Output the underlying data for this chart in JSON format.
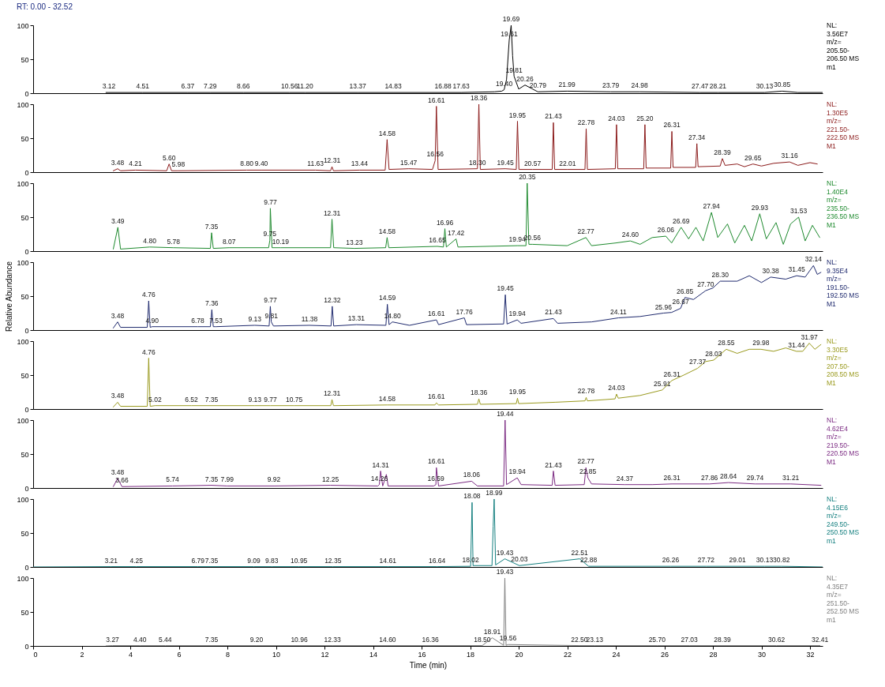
{
  "chart_data": [
    {
      "type": "line",
      "title": "RT: 0.00 - 32.52",
      "xlim": [
        0,
        32.52
      ],
      "xticks": [
        0,
        2,
        4,
        6,
        8,
        10,
        12,
        14,
        16,
        18,
        20,
        22,
        24,
        26,
        28,
        30,
        32
      ],
      "ylim": [
        0,
        100
      ],
      "yticks": [
        0,
        50,
        100
      ],
      "tick_labels": "y",
      "series": [
        {
          "color": "#000000",
          "x": [
            3.0,
            3.12,
            4.51,
            6.37,
            7.29,
            8.66,
            10.56,
            11.2,
            13.37,
            14.83,
            16.88,
            17.63,
            19.0,
            19.3,
            19.4,
            19.5,
            19.61,
            19.69,
            19.75,
            19.81,
            20.0,
            20.26,
            20.79,
            21.99,
            23.79,
            24.98,
            27.47,
            28.21,
            30.13,
            30.85,
            31.5,
            32.52
          ],
          "values": [
            1,
            1,
            1,
            1,
            1,
            1,
            1,
            1,
            1,
            1,
            1,
            1,
            2,
            3,
            5,
            20,
            78,
            100,
            55,
            25,
            6,
            12,
            2,
            3,
            2,
            2,
            1,
            1,
            1,
            3,
            1,
            1
          ]
        }
      ],
      "annotations": [
        "NL:\n3.56E7\nm/z=\n205.50-\n206.50 MS\nm1",
        {
          "text": "3.12",
          "x": 3.12,
          "y": 1
        },
        {
          "text": "4.51",
          "x": 4.51,
          "y": 1
        },
        {
          "text": "6.37",
          "x": 6.37,
          "y": 1
        },
        {
          "text": "7.29",
          "x": 7.29,
          "y": 1
        },
        {
          "text": "8.66",
          "x": 8.66,
          "y": 1
        },
        {
          "text": "10.56",
          "x": 10.56,
          "y": 1
        },
        {
          "text": "11.20",
          "x": 11.2,
          "y": 1
        },
        {
          "text": "13.37",
          "x": 13.37,
          "y": 1
        },
        {
          "text": "14.83",
          "x": 14.83,
          "y": 1
        },
        {
          "text": "16.88",
          "x": 16.88,
          "y": 1
        },
        {
          "text": "17.63",
          "x": 17.63,
          "y": 1
        },
        {
          "text": "19.40",
          "x": 19.4,
          "y": 5
        },
        {
          "text": "19.61",
          "x": 19.61,
          "y": 78
        },
        {
          "text": "19.69",
          "x": 19.69,
          "y": 100
        },
        {
          "text": "19.81",
          "x": 19.81,
          "y": 25
        },
        {
          "text": "20.26",
          "x": 20.26,
          "y": 12
        },
        {
          "text": "20.79",
          "x": 20.79,
          "y": 2
        },
        {
          "text": "21.99",
          "x": 21.99,
          "y": 3
        },
        {
          "text": "23.79",
          "x": 23.79,
          "y": 2
        },
        {
          "text": "24.98",
          "x": 24.98,
          "y": 2
        },
        {
          "text": "27.47",
          "x": 27.47,
          "y": 1
        },
        {
          "text": "28.21",
          "x": 28.21,
          "y": 1
        },
        {
          "text": "30.13",
          "x": 30.13,
          "y": 1
        },
        {
          "text": "30.85",
          "x": 30.85,
          "y": 3
        }
      ]
    },
    {
      "type": "line",
      "xlim": [
        0,
        32.52
      ],
      "xticks": [
        0,
        2,
        4,
        6,
        8,
        10,
        12,
        14,
        16,
        18,
        20,
        22,
        24,
        26,
        28,
        30,
        32
      ],
      "ylim": [
        0,
        100
      ],
      "yticks": [
        0,
        50,
        100
      ],
      "tick_labels": "y",
      "series": [
        {
          "color": "#8b1a1a",
          "x": [
            3.3,
            3.48,
            3.6,
            4.21,
            5.5,
            5.6,
            5.7,
            5.98,
            8.8,
            9.4,
            11.63,
            12.25,
            12.31,
            12.37,
            13.44,
            14.5,
            14.58,
            14.66,
            15.47,
            16.45,
            16.56,
            16.61,
            16.68,
            18.3,
            18.36,
            18.42,
            19.45,
            19.9,
            19.95,
            20.01,
            20.57,
            21.38,
            21.43,
            21.48,
            22.01,
            22.73,
            22.78,
            22.83,
            23.98,
            24.03,
            24.08,
            25.15,
            25.2,
            25.25,
            26.26,
            26.31,
            26.36,
            27.29,
            27.34,
            27.39,
            28.3,
            28.39,
            28.5,
            29.0,
            29.3,
            29.65,
            30.0,
            30.5,
            31.16,
            31.5,
            32.0,
            32.3
          ],
          "values": [
            2,
            5,
            2,
            3,
            2,
            12,
            2,
            2,
            3,
            3,
            3,
            2,
            8,
            2,
            3,
            3,
            48,
            4,
            5,
            4,
            17,
            97,
            4,
            5,
            100,
            4,
            5,
            4,
            75,
            4,
            4,
            4,
            73,
            4,
            4,
            4,
            64,
            4,
            5,
            70,
            5,
            5,
            70,
            6,
            6,
            60,
            7,
            7,
            42,
            8,
            9,
            20,
            10,
            12,
            8,
            12,
            9,
            13,
            15,
            10,
            14,
            12
          ]
        }
      ],
      "annotations": [
        "NL:\n1.30E5\nm/z=\n221.50-\n222.50 MS\nM1",
        {
          "text": "3.48",
          "x": 3.48,
          "y": 5
        },
        {
          "text": "4.21",
          "x": 4.21,
          "y": 3
        },
        {
          "text": "5.60",
          "x": 5.6,
          "y": 12
        },
        {
          "text": "5.98",
          "x": 5.98,
          "y": 2
        },
        {
          "text": "8.80",
          "x": 8.8,
          "y": 3
        },
        {
          "text": "9.40",
          "x": 9.4,
          "y": 3
        },
        {
          "text": "11.63",
          "x": 11.63,
          "y": 3
        },
        {
          "text": "12.31",
          "x": 12.31,
          "y": 8
        },
        {
          "text": "13.44",
          "x": 13.44,
          "y": 3
        },
        {
          "text": "14.58",
          "x": 14.58,
          "y": 48
        },
        {
          "text": "15.47",
          "x": 15.47,
          "y": 5
        },
        {
          "text": "16.56",
          "x": 16.56,
          "y": 17
        },
        {
          "text": "16.61",
          "x": 16.61,
          "y": 97
        },
        {
          "text": "18.30",
          "x": 18.3,
          "y": 5
        },
        {
          "text": "18.36",
          "x": 18.36,
          "y": 100
        },
        {
          "text": "19.45",
          "x": 19.45,
          "y": 5
        },
        {
          "text": "19.95",
          "x": 19.95,
          "y": 75
        },
        {
          "text": "20.57",
          "x": 20.57,
          "y": 4
        },
        {
          "text": "21.43",
          "x": 21.43,
          "y": 73
        },
        {
          "text": "22.01",
          "x": 22.01,
          "y": 4
        },
        {
          "text": "22.78",
          "x": 22.78,
          "y": 64
        },
        {
          "text": "24.03",
          "x": 24.03,
          "y": 70
        },
        {
          "text": "25.20",
          "x": 25.2,
          "y": 70
        },
        {
          "text": "26.31",
          "x": 26.31,
          "y": 60
        },
        {
          "text": "27.34",
          "x": 27.34,
          "y": 42
        },
        {
          "text": "28.39",
          "x": 28.39,
          "y": 20
        },
        {
          "text": "29.65",
          "x": 29.65,
          "y": 12
        },
        {
          "text": "31.16",
          "x": 31.16,
          "y": 15
        }
      ]
    },
    {
      "type": "line",
      "xlim": [
        0,
        32.52
      ],
      "xticks": [
        0,
        2,
        4,
        6,
        8,
        10,
        12,
        14,
        16,
        18,
        20,
        22,
        24,
        26,
        28,
        30,
        32
      ],
      "ylim": [
        0,
        100
      ],
      "yticks": [
        0,
        50,
        100
      ],
      "tick_labels": "y",
      "series": [
        {
          "color": "#1e8a2e",
          "x": [
            3.3,
            3.49,
            3.6,
            4.8,
            5.78,
            7.3,
            7.35,
            7.42,
            8.07,
            9.7,
            9.75,
            9.77,
            9.84,
            10.19,
            12.25,
            12.31,
            12.38,
            13.23,
            14.52,
            14.58,
            14.65,
            16.65,
            16.9,
            16.96,
            17.02,
            17.42,
            17.5,
            19.94,
            20.3,
            20.35,
            20.42,
            20.56,
            22.0,
            22.77,
            23.0,
            24.0,
            24.6,
            25.0,
            25.5,
            26.06,
            26.3,
            26.69,
            27.0,
            27.3,
            27.6,
            27.94,
            28.2,
            28.6,
            28.9,
            29.3,
            29.6,
            29.93,
            30.2,
            30.6,
            30.9,
            31.2,
            31.53,
            31.8,
            32.1,
            32.4
          ],
          "values": [
            3,
            35,
            3,
            6,
            5,
            4,
            27,
            4,
            5,
            5,
            16,
            63,
            5,
            5,
            5,
            47,
            5,
            4,
            5,
            20,
            5,
            7,
            6,
            33,
            6,
            18,
            6,
            8,
            8,
            100,
            10,
            10,
            8,
            20,
            8,
            12,
            15,
            10,
            20,
            22,
            12,
            35,
            18,
            35,
            15,
            57,
            20,
            40,
            12,
            38,
            15,
            55,
            18,
            42,
            10,
            40,
            50,
            15,
            38,
            20
          ]
        }
      ],
      "annotations": [
        "NL:\n1.40E4\nm/z=\n235.50-\n236.50 MS\nM1",
        {
          "text": "3.49",
          "x": 3.49,
          "y": 35
        },
        {
          "text": "4.80",
          "x": 4.8,
          "y": 6
        },
        {
          "text": "5.78",
          "x": 5.78,
          "y": 5
        },
        {
          "text": "7.35",
          "x": 7.35,
          "y": 27
        },
        {
          "text": "8.07",
          "x": 8.07,
          "y": 5
        },
        {
          "text": "9.75",
          "x": 9.75,
          "y": 16
        },
        {
          "text": "9.77",
          "x": 9.77,
          "y": 63
        },
        {
          "text": "10.19",
          "x": 10.19,
          "y": 5
        },
        {
          "text": "12.31",
          "x": 12.31,
          "y": 47
        },
        {
          "text": "13.23",
          "x": 13.23,
          "y": 4
        },
        {
          "text": "14.58",
          "x": 14.58,
          "y": 20
        },
        {
          "text": "16.65",
          "x": 16.65,
          "y": 7
        },
        {
          "text": "16.96",
          "x": 16.96,
          "y": 33
        },
        {
          "text": "17.42",
          "x": 17.42,
          "y": 18
        },
        {
          "text": "19.94",
          "x": 19.94,
          "y": 8
        },
        {
          "text": "20.35",
          "x": 20.35,
          "y": 100
        },
        {
          "text": "20.56",
          "x": 20.56,
          "y": 10
        },
        {
          "text": "22.77",
          "x": 22.77,
          "y": 20
        },
        {
          "text": "24.60",
          "x": 24.6,
          "y": 15
        },
        {
          "text": "26.06",
          "x": 26.06,
          "y": 22
        },
        {
          "text": "26.69",
          "x": 26.69,
          "y": 35
        },
        {
          "text": "27.94",
          "x": 27.94,
          "y": 57
        },
        {
          "text": "29.93",
          "x": 29.93,
          "y": 55
        },
        {
          "text": "31.53",
          "x": 31.53,
          "y": 50
        }
      ]
    },
    {
      "type": "line",
      "xlim": [
        0,
        32.52
      ],
      "xticks": [
        0,
        2,
        4,
        6,
        8,
        10,
        12,
        14,
        16,
        18,
        20,
        22,
        24,
        26,
        28,
        30,
        32
      ],
      "ylim": [
        0,
        100
      ],
      "yticks": [
        0,
        50,
        100
      ],
      "tick_labels": "y",
      "ylabel": "Relative Abundance",
      "series": [
        {
          "color": "#1f2a6e",
          "x": [
            3.3,
            3.48,
            3.6,
            4.7,
            4.76,
            4.82,
            4.9,
            6.78,
            7.3,
            7.36,
            7.42,
            7.53,
            9.13,
            9.72,
            9.77,
            9.81,
            9.9,
            11.38,
            12.27,
            12.32,
            12.38,
            13.31,
            14.53,
            14.59,
            14.66,
            14.8,
            15.5,
            16.61,
            16.7,
            17.76,
            17.85,
            19.38,
            19.45,
            19.52,
            19.94,
            20.1,
            21.43,
            21.6,
            23.0,
            24.11,
            25.0,
            25.96,
            26.3,
            26.67,
            26.85,
            27.2,
            27.7,
            28.0,
            28.3,
            29.0,
            29.5,
            30.0,
            30.38,
            31.0,
            31.45,
            31.8,
            32.14,
            32.3,
            32.45
          ],
          "values": [
            3,
            12,
            4,
            4,
            43,
            4,
            5,
            5,
            5,
            30,
            5,
            5,
            7,
            6,
            35,
            12,
            6,
            7,
            6,
            35,
            6,
            8,
            7,
            38,
            8,
            12,
            7,
            15,
            8,
            18,
            8,
            9,
            52,
            9,
            15,
            10,
            17,
            10,
            12,
            18,
            20,
            25,
            26,
            32,
            48,
            45,
            58,
            62,
            72,
            72,
            80,
            70,
            78,
            75,
            80,
            78,
            95,
            82,
            85
          ]
        }
      ],
      "annotations": [
        "NL:\n9.35E4\nm/z=\n191.50-\n192.50 MS\nM1",
        {
          "text": "3.48",
          "x": 3.48,
          "y": 12
        },
        {
          "text": "4.76",
          "x": 4.76,
          "y": 43
        },
        {
          "text": "4.90",
          "x": 4.9,
          "y": 5
        },
        {
          "text": "6.78",
          "x": 6.78,
          "y": 5
        },
        {
          "text": "7.36",
          "x": 7.36,
          "y": 30
        },
        {
          "text": "7.53",
          "x": 7.53,
          "y": 5
        },
        {
          "text": "9.13",
          "x": 9.13,
          "y": 7
        },
        {
          "text": "9.77",
          "x": 9.77,
          "y": 35
        },
        {
          "text": "9.81",
          "x": 9.81,
          "y": 12
        },
        {
          "text": "11.38",
          "x": 11.38,
          "y": 7
        },
        {
          "text": "12.32",
          "x": 12.32,
          "y": 35
        },
        {
          "text": "13.31",
          "x": 13.31,
          "y": 8
        },
        {
          "text": "14.59",
          "x": 14.59,
          "y": 38
        },
        {
          "text": "14.80",
          "x": 14.8,
          "y": 12
        },
        {
          "text": "16.61",
          "x": 16.61,
          "y": 15
        },
        {
          "text": "17.76",
          "x": 17.76,
          "y": 18
        },
        {
          "text": "19.45",
          "x": 19.45,
          "y": 52
        },
        {
          "text": "19.94",
          "x": 19.94,
          "y": 15
        },
        {
          "text": "21.43",
          "x": 21.43,
          "y": 17
        },
        {
          "text": "24.11",
          "x": 24.11,
          "y": 18
        },
        {
          "text": "25.96",
          "x": 25.96,
          "y": 25
        },
        {
          "text": "26.67",
          "x": 26.67,
          "y": 32
        },
        {
          "text": "26.85",
          "x": 26.85,
          "y": 48
        },
        {
          "text": "27.70",
          "x": 27.7,
          "y": 58
        },
        {
          "text": "28.30",
          "x": 28.3,
          "y": 72
        },
        {
          "text": "30.38",
          "x": 30.38,
          "y": 78
        },
        {
          "text": "31.45",
          "x": 31.45,
          "y": 80
        },
        {
          "text": "32.14",
          "x": 32.14,
          "y": 95
        }
      ]
    },
    {
      "type": "line",
      "xlim": [
        0,
        32.52
      ],
      "xticks": [
        0,
        2,
        4,
        6,
        8,
        10,
        12,
        14,
        16,
        18,
        20,
        22,
        24,
        26,
        28,
        30,
        32
      ],
      "ylim": [
        0,
        100
      ],
      "yticks": [
        0,
        50,
        100
      ],
      "tick_labels": "y",
      "series": [
        {
          "color": "#9a9a1e",
          "x": [
            3.3,
            3.48,
            3.6,
            4.7,
            4.76,
            4.82,
            5.02,
            6.52,
            7.35,
            9.13,
            9.77,
            10.75,
            12.26,
            12.31,
            12.37,
            14.58,
            16.55,
            16.61,
            16.7,
            18.3,
            18.36,
            18.42,
            19.9,
            19.95,
            20.0,
            21.5,
            22.73,
            22.78,
            22.83,
            23.97,
            24.03,
            24.1,
            25.0,
            25.91,
            26.31,
            26.8,
            27.37,
            27.7,
            28.03,
            28.55,
            29.0,
            29.5,
            29.98,
            30.5,
            31.0,
            31.44,
            31.7,
            31.97,
            32.2,
            32.45
          ],
          "values": [
            3,
            10,
            4,
            4,
            75,
            4,
            5,
            5,
            5,
            5,
            5,
            5,
            5,
            14,
            5,
            6,
            6,
            9,
            6,
            7,
            15,
            7,
            8,
            16,
            8,
            10,
            12,
            17,
            12,
            15,
            22,
            16,
            20,
            28,
            42,
            50,
            60,
            70,
            72,
            88,
            82,
            88,
            88,
            85,
            90,
            85,
            85,
            97,
            88,
            95
          ]
        }
      ],
      "annotations": [
        "NL:\n3.30E5\nm/z=\n207.50-\n208.50 MS\nM1",
        {
          "text": "3.48",
          "x": 3.48,
          "y": 10
        },
        {
          "text": "4.76",
          "x": 4.76,
          "y": 75
        },
        {
          "text": "5.02",
          "x": 5.02,
          "y": 5
        },
        {
          "text": "6.52",
          "x": 6.52,
          "y": 5
        },
        {
          "text": "7.35",
          "x": 7.35,
          "y": 5
        },
        {
          "text": "9.13",
          "x": 9.13,
          "y": 5
        },
        {
          "text": "9.77",
          "x": 9.77,
          "y": 5
        },
        {
          "text": "10.75",
          "x": 10.75,
          "y": 5
        },
        {
          "text": "12.31",
          "x": 12.31,
          "y": 14
        },
        {
          "text": "14.58",
          "x": 14.58,
          "y": 6
        },
        {
          "text": "16.61",
          "x": 16.61,
          "y": 9
        },
        {
          "text": "18.36",
          "x": 18.36,
          "y": 15
        },
        {
          "text": "19.95",
          "x": 19.95,
          "y": 16
        },
        {
          "text": "22.78",
          "x": 22.78,
          "y": 17
        },
        {
          "text": "24.03",
          "x": 24.03,
          "y": 22
        },
        {
          "text": "25.91",
          "x": 25.91,
          "y": 28
        },
        {
          "text": "26.31",
          "x": 26.31,
          "y": 42
        },
        {
          "text": "27.37",
          "x": 27.37,
          "y": 60
        },
        {
          "text": "28.03",
          "x": 28.03,
          "y": 72
        },
        {
          "text": "28.55",
          "x": 28.55,
          "y": 88
        },
        {
          "text": "29.98",
          "x": 29.98,
          "y": 88
        },
        {
          "text": "31.44",
          "x": 31.44,
          "y": 85
        },
        {
          "text": "31.97",
          "x": 31.97,
          "y": 97
        }
      ]
    },
    {
      "type": "line",
      "xlim": [
        0,
        32.52
      ],
      "xticks": [
        0,
        2,
        4,
        6,
        8,
        10,
        12,
        14,
        16,
        18,
        20,
        22,
        24,
        26,
        28,
        30,
        32
      ],
      "ylim": [
        0,
        100
      ],
      "yticks": [
        0,
        50,
        100
      ],
      "tick_labels": "y",
      "series": [
        {
          "color": "#7b2a82",
          "x": [
            3.3,
            3.48,
            3.66,
            5.74,
            7.35,
            7.99,
            9.92,
            12.25,
            14.2,
            14.26,
            14.31,
            14.4,
            14.55,
            14.62,
            16.5,
            16.59,
            16.61,
            16.7,
            18.06,
            18.3,
            19.38,
            19.44,
            19.5,
            19.94,
            20.1,
            21.38,
            21.43,
            21.5,
            22.7,
            22.77,
            22.85,
            23.0,
            24.37,
            25.5,
            26.31,
            27.86,
            28.64,
            29.74,
            31.21,
            32.45
          ],
          "values": [
            2,
            14,
            2,
            3,
            4,
            3,
            3,
            4,
            3,
            5,
            25,
            3,
            20,
            3,
            3,
            5,
            30,
            3,
            10,
            3,
            3,
            100,
            5,
            15,
            5,
            4,
            25,
            4,
            5,
            30,
            15,
            6,
            5,
            5,
            6,
            6,
            8,
            6,
            6,
            4
          ]
        }
      ],
      "annotations": [
        "NL:\n4.62E4\nm/z=\n219.50-\n220.50 MS\nM1",
        {
          "text": "3.48",
          "x": 3.48,
          "y": 14
        },
        {
          "text": "3.66",
          "x": 3.66,
          "y": 2
        },
        {
          "text": "5.74",
          "x": 5.74,
          "y": 3
        },
        {
          "text": "7.35",
          "x": 7.35,
          "y": 4
        },
        {
          "text": "7.99",
          "x": 7.99,
          "y": 3
        },
        {
          "text": "9.92",
          "x": 9.92,
          "y": 3
        },
        {
          "text": "12.25",
          "x": 12.25,
          "y": 4
        },
        {
          "text": "14.26",
          "x": 14.26,
          "y": 5
        },
        {
          "text": "14.31",
          "x": 14.31,
          "y": 25
        },
        {
          "text": "16.59",
          "x": 16.59,
          "y": 5
        },
        {
          "text": "16.61",
          "x": 16.61,
          "y": 30
        },
        {
          "text": "18.06",
          "x": 18.06,
          "y": 10
        },
        {
          "text": "19.44",
          "x": 19.44,
          "y": 100
        },
        {
          "text": "19.94",
          "x": 19.94,
          "y": 15
        },
        {
          "text": "21.43",
          "x": 21.43,
          "y": 25
        },
        {
          "text": "22.77",
          "x": 22.77,
          "y": 30
        },
        {
          "text": "22.85",
          "x": 22.85,
          "y": 15
        },
        {
          "text": "24.37",
          "x": 24.37,
          "y": 5
        },
        {
          "text": "26.31",
          "x": 26.31,
          "y": 6
        },
        {
          "text": "27.86",
          "x": 27.86,
          "y": 6
        },
        {
          "text": "28.64",
          "x": 28.64,
          "y": 8
        },
        {
          "text": "29.74",
          "x": 29.74,
          "y": 6
        },
        {
          "text": "31.21",
          "x": 31.21,
          "y": 6
        }
      ]
    },
    {
      "type": "line",
      "xlim": [
        0,
        32.52
      ],
      "xticks": [
        0,
        2,
        4,
        6,
        8,
        10,
        12,
        14,
        16,
        18,
        20,
        22,
        24,
        26,
        28,
        30,
        32
      ],
      "ylim": [
        0,
        100
      ],
      "yticks": [
        0,
        50,
        100
      ],
      "tick_labels": "y",
      "series": [
        {
          "color": "#137f7f",
          "x": [
            0,
            3.21,
            4.25,
            6.79,
            7.35,
            9.09,
            9.83,
            10.95,
            12.35,
            14.61,
            16.64,
            18.02,
            18.08,
            18.12,
            18.9,
            18.95,
            18.99,
            19.05,
            19.43,
            20.03,
            22.51,
            22.88,
            26.26,
            27.72,
            29.01,
            30.13,
            30.82,
            32.52
          ],
          "values": [
            0,
            0.5,
            0.5,
            0.5,
            0.5,
            0.5,
            0.5,
            0.5,
            0.5,
            0.5,
            0.5,
            1,
            95,
            2,
            2,
            60,
            100,
            3,
            12,
            2,
            12,
            1,
            1,
            1,
            1,
            1,
            1,
            0
          ]
        }
      ],
      "annotations": [
        "NL:\n4.15E6\nm/z=\n249.50-\n250.50 MS\nm1",
        {
          "text": "3.21",
          "x": 3.21,
          "y": 0.5
        },
        {
          "text": "4.25",
          "x": 4.25,
          "y": 0.5
        },
        {
          "text": "6.79",
          "x": 6.79,
          "y": 0.5
        },
        {
          "text": "7.35",
          "x": 7.35,
          "y": 0.5
        },
        {
          "text": "9.09",
          "x": 9.09,
          "y": 0.5
        },
        {
          "text": "9.83",
          "x": 9.83,
          "y": 0.5
        },
        {
          "text": "10.95",
          "x": 10.95,
          "y": 0.5
        },
        {
          "text": "12.35",
          "x": 12.35,
          "y": 0.5
        },
        {
          "text": "14.61",
          "x": 14.61,
          "y": 0.5
        },
        {
          "text": "16.64",
          "x": 16.64,
          "y": 0.5
        },
        {
          "text": "18.02",
          "x": 18.02,
          "y": 1
        },
        {
          "text": "18.08",
          "x": 18.08,
          "y": 95
        },
        {
          "text": "18.99",
          "x": 18.99,
          "y": 100
        },
        {
          "text": "19.43",
          "x": 19.43,
          "y": 12
        },
        {
          "text": "20.03",
          "x": 20.03,
          "y": 2
        },
        {
          "text": "22.51",
          "x": 22.51,
          "y": 12
        },
        {
          "text": "22.88",
          "x": 22.88,
          "y": 1
        },
        {
          "text": "26.26",
          "x": 26.26,
          "y": 1
        },
        {
          "text": "27.72",
          "x": 27.72,
          "y": 1
        },
        {
          "text": "29.01",
          "x": 29.01,
          "y": 1
        },
        {
          "text": "30.13",
          "x": 30.13,
          "y": 1
        },
        {
          "text": "30.82",
          "x": 30.82,
          "y": 1
        }
      ]
    },
    {
      "type": "line",
      "xlim": [
        0,
        32.52
      ],
      "xticks": [
        0,
        2,
        4,
        6,
        8,
        10,
        12,
        14,
        16,
        18,
        20,
        22,
        24,
        26,
        28,
        30,
        32
      ],
      "ylim": [
        0,
        100
      ],
      "yticks": [
        0,
        50,
        100
      ],
      "xlabel": "Time (min)",
      "series": [
        {
          "color": "#808080",
          "x": [
            3.0,
            3.27,
            4.4,
            5.44,
            7.35,
            9.2,
            10.96,
            12.33,
            14.6,
            16.36,
            18.5,
            18.91,
            19.38,
            19.43,
            19.48,
            19.56,
            22.5,
            23.13,
            25.7,
            27.03,
            28.39,
            30.62,
            32.41
          ],
          "values": [
            0,
            0.5,
            0.5,
            0.5,
            0.5,
            0.5,
            0.5,
            0.5,
            0.5,
            0.5,
            0.5,
            12,
            1,
            100,
            1,
            2,
            0.5,
            0.5,
            0.5,
            0.5,
            0.5,
            0.5,
            0.5
          ]
        }
      ],
      "annotations": [
        "NL:\n4.35E7\nm/z=\n251.50-\n252.50 MS\nm1",
        {
          "text": "3.27",
          "x": 3.27,
          "y": 0.5
        },
        {
          "text": "4.40",
          "x": 4.4,
          "y": 0.5
        },
        {
          "text": "5.44",
          "x": 5.44,
          "y": 0.5
        },
        {
          "text": "7.35",
          "x": 7.35,
          "y": 0.5
        },
        {
          "text": "9.20",
          "x": 9.2,
          "y": 0.5
        },
        {
          "text": "10.96",
          "x": 10.96,
          "y": 0.5
        },
        {
          "text": "12.33",
          "x": 12.33,
          "y": 0.5
        },
        {
          "text": "14.60",
          "x": 14.6,
          "y": 0.5
        },
        {
          "text": "16.36",
          "x": 16.36,
          "y": 0.5
        },
        {
          "text": "18.50",
          "x": 18.5,
          "y": 0.5
        },
        {
          "text": "18.91",
          "x": 18.91,
          "y": 12
        },
        {
          "text": "19.43",
          "x": 19.43,
          "y": 100
        },
        {
          "text": "19.56",
          "x": 19.56,
          "y": 2
        },
        {
          "text": "22.50",
          "x": 22.5,
          "y": 0.5
        },
        {
          "text": "23.13",
          "x": 23.13,
          "y": 0.5
        },
        {
          "text": "25.70",
          "x": 25.7,
          "y": 0.5
        },
        {
          "text": "27.03",
          "x": 27.03,
          "y": 0.5
        },
        {
          "text": "28.39",
          "x": 28.39,
          "y": 0.5
        },
        {
          "text": "30.62",
          "x": 30.62,
          "y": 0.5
        },
        {
          "text": "32.41",
          "x": 32.41,
          "y": 0.5
        }
      ]
    }
  ]
}
